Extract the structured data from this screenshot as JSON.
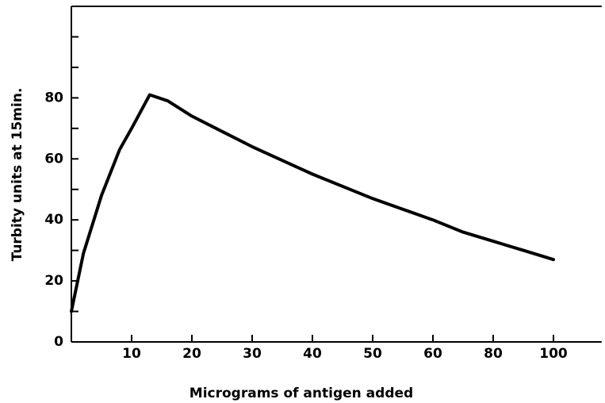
{
  "chart_data": {
    "type": "line",
    "x_label": "Micrograms of antigen added",
    "y_label": "Turbity units at 15min.",
    "x": [
      0,
      2,
      5,
      8,
      10,
      13,
      16,
      20,
      25,
      30,
      40,
      50,
      60,
      70,
      80,
      90,
      100
    ],
    "series": [
      {
        "name": "Turbidity",
        "color": "#000000",
        "values": [
          10,
          29,
          48,
          63,
          70,
          81,
          79,
          74,
          69,
          64,
          55,
          47,
          40,
          36,
          33,
          30,
          27
        ]
      }
    ],
    "xlim": [
      0,
      116
    ],
    "xticks": [
      10,
      20,
      30,
      40,
      50,
      60,
      80,
      100
    ],
    "ylim": [
      0,
      110
    ],
    "yticks": [
      0,
      20,
      40,
      60,
      80
    ],
    "yminor_ticks": [
      10,
      30,
      50,
      70,
      90,
      100
    ]
  }
}
